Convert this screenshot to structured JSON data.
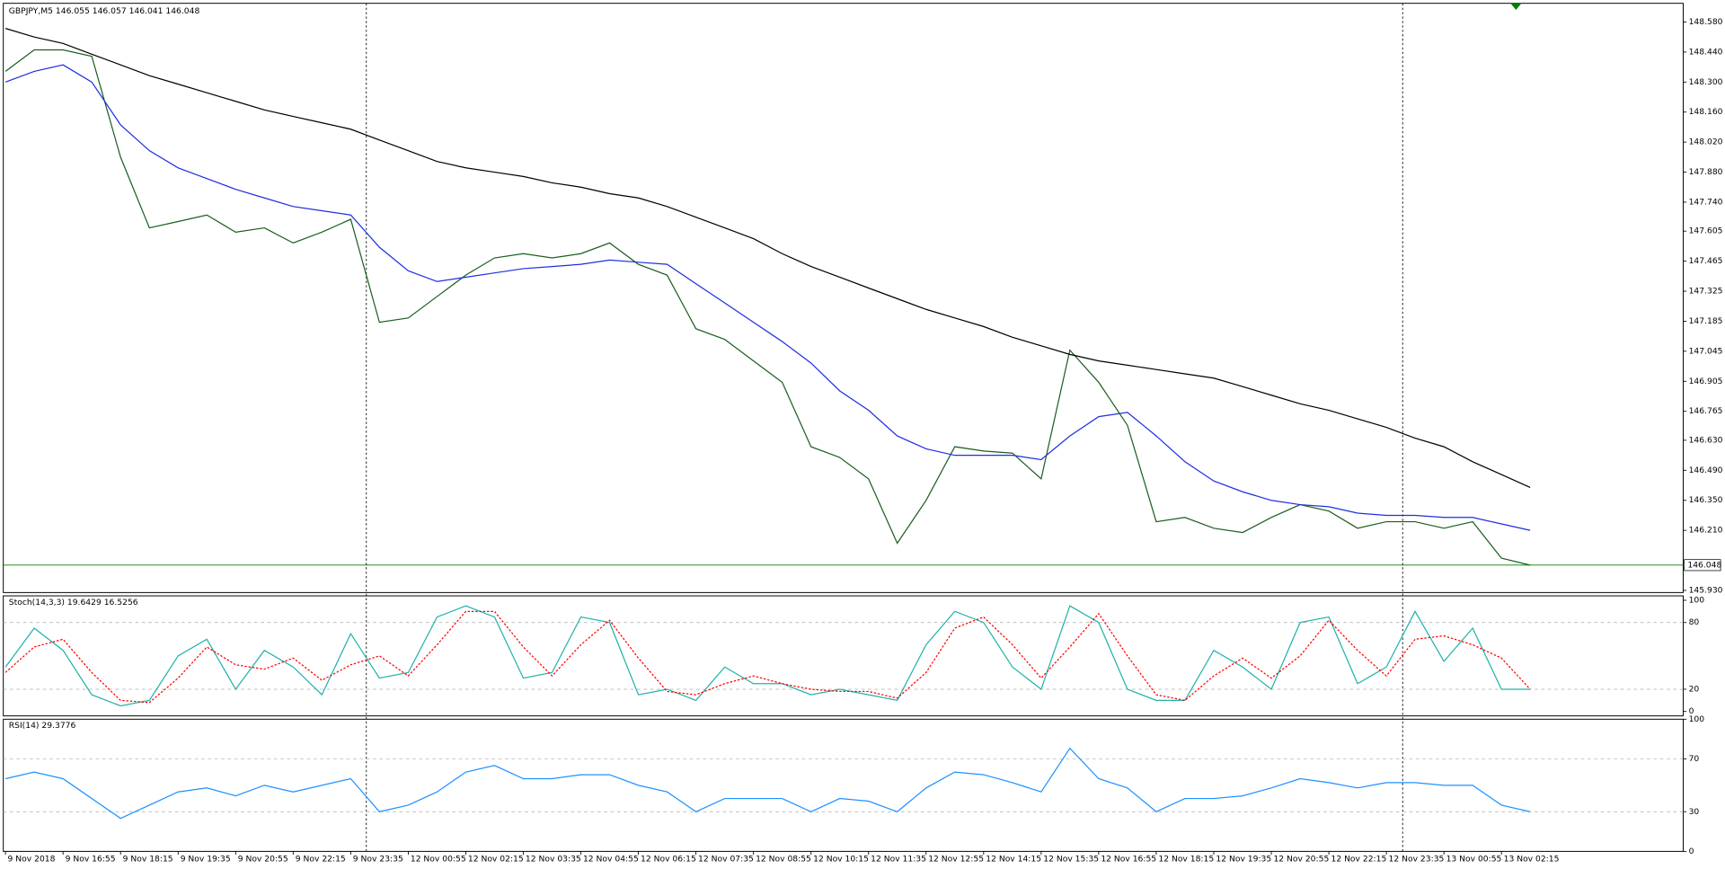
{
  "chart_data": [
    {
      "type": "line",
      "title": "GBPJPY,M5  146.055 146.057 146.041 146.048",
      "ylim": [
        145.92,
        148.662
      ],
      "yticks": [
        {
          "value": 148.58,
          "label": "148.580"
        },
        {
          "value": 148.44,
          "label": "148.440"
        },
        {
          "value": 148.3,
          "label": "148.300"
        },
        {
          "value": 148.16,
          "label": "148.160"
        },
        {
          "value": 148.02,
          "label": "148.020"
        },
        {
          "value": 147.88,
          "label": "147.880"
        },
        {
          "value": 147.74,
          "label": "147.740"
        },
        147.605,
        147.465,
        147.325,
        147.185,
        147.045,
        146.905,
        146.765,
        {
          "value": 146.63,
          "label": "146.630"
        },
        {
          "value": 146.49,
          "label": "146.490"
        },
        {
          "value": 146.35,
          "label": "146.350"
        },
        {
          "value": 146.21,
          "label": "146.210"
        },
        {
          "value": 145.93,
          "label": "145.930"
        }
      ],
      "last_price": 146.048,
      "last_price_color": "#008000",
      "series": [
        {
          "color": "#1b5e20",
          "values": [
            148.35,
            148.45,
            148.45,
            148.42,
            147.95,
            147.62,
            147.65,
            147.68,
            147.6,
            147.62,
            147.55,
            147.6,
            147.66,
            147.18,
            147.2,
            147.3,
            147.4,
            147.48,
            147.5,
            147.48,
            147.5,
            147.55,
            147.45,
            147.4,
            147.15,
            147.1,
            147.0,
            146.9,
            146.6,
            146.55,
            146.45,
            146.15,
            146.35,
            146.6,
            146.58,
            146.57,
            146.45,
            147.05,
            146.9,
            146.7,
            146.25,
            146.27,
            146.22,
            146.2,
            146.27,
            146.33,
            146.3,
            146.22,
            146.25,
            146.25,
            146.22,
            146.25,
            146.08,
            146.048
          ]
        },
        {
          "color": "#1f2ee0",
          "values": [
            148.3,
            148.35,
            148.38,
            148.3,
            148.1,
            147.98,
            147.9,
            147.85,
            147.8,
            147.76,
            147.72,
            147.7,
            147.68,
            147.53,
            147.42,
            147.37,
            147.39,
            147.41,
            147.43,
            147.44,
            147.45,
            147.47,
            147.46,
            147.45,
            147.36,
            147.27,
            147.18,
            147.09,
            146.99,
            146.86,
            146.77,
            146.65,
            146.59,
            146.56,
            146.56,
            146.56,
            146.54,
            146.65,
            146.74,
            146.76,
            146.65,
            146.53,
            146.44,
            146.39,
            146.35,
            146.33,
            146.32,
            146.29,
            146.28,
            146.28,
            146.27,
            146.27,
            146.24,
            146.21
          ]
        },
        {
          "color": "#000000",
          "values": [
            148.55,
            148.51,
            148.48,
            148.43,
            148.38,
            148.33,
            148.29,
            148.25,
            148.21,
            148.17,
            148.14,
            148.11,
            148.08,
            148.03,
            147.98,
            147.93,
            147.9,
            147.88,
            147.86,
            147.83,
            147.81,
            147.78,
            147.76,
            147.72,
            147.67,
            147.62,
            147.57,
            147.5,
            147.44,
            147.39,
            147.34,
            147.29,
            147.24,
            147.2,
            147.16,
            147.11,
            147.07,
            147.03,
            147.0,
            146.98,
            146.96,
            146.94,
            146.92,
            146.88,
            146.84,
            146.8,
            146.77,
            146.73,
            146.69,
            146.64,
            146.6,
            146.53,
            146.47,
            146.41
          ]
        }
      ]
    },
    {
      "type": "line",
      "title": "Stoch(14,3,3) 19.6429 16.5256",
      "ylim": [
        -4,
        104
      ],
      "yticks": [
        0,
        20,
        80,
        100
      ],
      "grid_levels": [
        20,
        80
      ],
      "series": [
        {
          "color": "#20b2aa",
          "values": [
            40,
            75,
            55,
            15,
            5,
            10,
            50,
            65,
            20,
            55,
            40,
            15,
            70,
            30,
            35,
            85,
            95,
            85,
            30,
            35,
            85,
            80,
            15,
            20,
            10,
            40,
            25,
            25,
            15,
            20,
            15,
            10,
            60,
            90,
            80,
            40,
            20,
            95,
            80,
            20,
            10,
            10,
            55,
            40,
            20,
            80,
            85,
            25,
            40,
            90,
            45,
            75,
            20,
            20
          ]
        },
        {
          "color": "#ff0000",
          "dashed": true,
          "values": [
            35,
            58,
            65,
            35,
            10,
            8,
            30,
            58,
            42,
            38,
            48,
            28,
            42,
            50,
            32,
            60,
            90,
            90,
            58,
            32,
            60,
            82,
            48,
            18,
            15,
            25,
            32,
            25,
            20,
            18,
            18,
            12,
            35,
            75,
            85,
            60,
            30,
            58,
            88,
            50,
            15,
            10,
            32,
            48,
            30,
            50,
            82,
            55,
            32,
            65,
            68,
            60,
            48,
            20
          ]
        }
      ]
    },
    {
      "type": "line",
      "title": "RSI(14) 29.3776",
      "ylim": [
        0,
        100
      ],
      "yticks": [
        0,
        30,
        70,
        100
      ],
      "grid_levels": [
        30,
        70
      ],
      "categories": [
        "9 Nov 2018",
        null,
        "9 Nov 16:55",
        null,
        "9 Nov 18:15",
        null,
        "9 Nov 19:35",
        null,
        "9 Nov 20:55",
        null,
        "9 Nov 22:15",
        null,
        "9 Nov 23:35",
        null,
        "12 Nov 00:55",
        null,
        "12 Nov 02:15",
        null,
        "12 Nov 03:35",
        null,
        "12 Nov 04:55",
        null,
        "12 Nov 06:15",
        null,
        "12 Nov 07:35",
        null,
        "12 Nov 08:55",
        null,
        "12 Nov 10:15",
        null,
        "12 Nov 11:35",
        null,
        "12 Nov 12:55",
        null,
        "12 Nov 14:15",
        null,
        "12 Nov 15:35",
        null,
        "12 Nov 16:55",
        null,
        "12 Nov 18:15",
        null,
        "12 Nov 19:35",
        null,
        "12 Nov 20:55",
        null,
        "12 Nov 22:15",
        null,
        "12 Nov 23:35",
        null,
        "13 Nov 00:55",
        null,
        "13 Nov 02:15",
        null
      ],
      "series": [
        {
          "color": "#1e90ff",
          "values": [
            55,
            60,
            55,
            40,
            25,
            35,
            45,
            48,
            42,
            50,
            45,
            50,
            55,
            30,
            35,
            45,
            60,
            65,
            55,
            55,
            58,
            58,
            50,
            45,
            30,
            40,
            40,
            40,
            30,
            40,
            38,
            30,
            48,
            60,
            58,
            52,
            45,
            78,
            55,
            48,
            30,
            40,
            40,
            42,
            48,
            55,
            52,
            48,
            52,
            52,
            50,
            50,
            35,
            30
          ]
        }
      ]
    }
  ]
}
